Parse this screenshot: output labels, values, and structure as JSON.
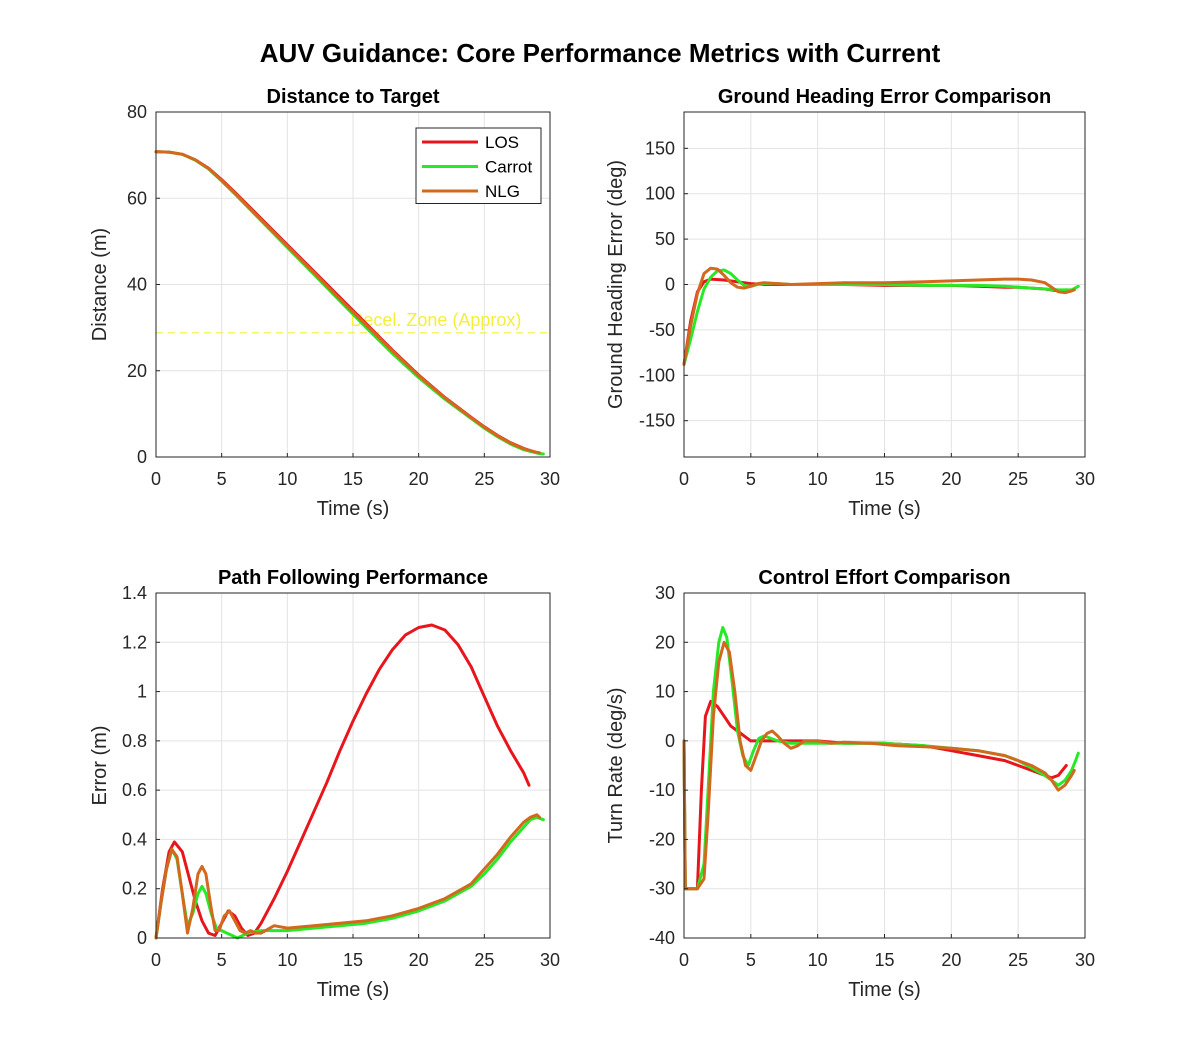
{
  "figure": {
    "title": "AUV Guidance: Core Performance Metrics with Current"
  },
  "colors": {
    "LOS": "#e8161c",
    "Carrot": "#27ea27",
    "NLG": "#d2691e",
    "threshold": "#f5ef3a",
    "grid": "#e3e3e3",
    "axis": "#262626"
  },
  "chart_data": [
    {
      "type": "line",
      "title": "Distance to Target",
      "xlabel": "Time (s)",
      "ylabel": "Distance (m)",
      "xlim": [
        0,
        30
      ],
      "ylim": [
        0,
        80
      ],
      "xticks": [
        0,
        5,
        10,
        15,
        20,
        25,
        30
      ],
      "yticks": [
        0,
        20,
        40,
        60,
        80
      ],
      "grid": true,
      "legend": {
        "placement": "top-right",
        "entries": [
          "LOS",
          "Carrot",
          "NLG"
        ]
      },
      "annotation": {
        "text": "Decel. Zone (Approx)",
        "y": 28.8,
        "x_text": 14.8
      },
      "series": [
        {
          "name": "LOS",
          "x": [
            0,
            1,
            2,
            3,
            4,
            5,
            6,
            8,
            10,
            12,
            14,
            16,
            18,
            20,
            22,
            24,
            25,
            26,
            27,
            28,
            28.6
          ],
          "y": [
            70.8,
            70.7,
            70.2,
            68.9,
            67.0,
            64.3,
            61.4,
            55.3,
            49.2,
            43.1,
            37.0,
            30.9,
            24.8,
            19.0,
            13.8,
            9.2,
            7.0,
            5.0,
            3.3,
            2.0,
            1.4
          ]
        },
        {
          "name": "Carrot",
          "x": [
            0,
            1,
            2,
            3,
            4,
            5,
            6,
            8,
            10,
            12,
            14,
            16,
            18,
            20,
            22,
            24,
            25,
            26,
            27,
            28,
            29,
            29.5
          ],
          "y": [
            70.8,
            70.7,
            70.2,
            68.8,
            66.8,
            64.0,
            61.0,
            54.8,
            48.6,
            42.4,
            36.2,
            30.0,
            24.0,
            18.4,
            13.4,
            8.9,
            6.7,
            4.7,
            3.0,
            1.7,
            0.9,
            0.7
          ]
        },
        {
          "name": "NLG",
          "x": [
            0,
            1,
            2,
            3,
            4,
            5,
            6,
            8,
            10,
            12,
            14,
            16,
            18,
            20,
            22,
            24,
            25,
            26,
            27,
            28,
            29,
            29.2
          ],
          "y": [
            70.8,
            70.7,
            70.2,
            68.9,
            66.9,
            64.1,
            61.2,
            55.0,
            48.9,
            42.8,
            36.6,
            30.6,
            24.6,
            18.8,
            13.7,
            9.1,
            6.9,
            4.9,
            3.2,
            1.9,
            1.1,
            1.0
          ]
        }
      ]
    },
    {
      "type": "line",
      "title": "Ground Heading Error Comparison",
      "xlabel": "Time (s)",
      "ylabel": "Ground Heading Error (deg)",
      "xlim": [
        0,
        30
      ],
      "ylim": [
        -190,
        190
      ],
      "xticks": [
        0,
        5,
        10,
        15,
        20,
        25,
        30
      ],
      "yticks": [
        -150,
        -100,
        -50,
        0,
        50,
        100,
        150
      ],
      "grid": true,
      "series": [
        {
          "name": "LOS",
          "x": [
            0,
            0.5,
            1,
            1.5,
            2,
            3,
            4,
            5,
            6,
            8,
            10,
            12,
            15,
            18,
            20,
            22,
            24,
            25,
            26,
            27,
            28,
            28.6
          ],
          "y": [
            -88,
            -40,
            -8,
            3,
            6,
            5,
            3,
            1,
            0,
            0,
            0,
            0,
            -1,
            -1,
            -1,
            -2,
            -3,
            -3,
            -4,
            -5,
            -7,
            -6
          ]
        },
        {
          "name": "Carrot",
          "x": [
            0,
            0.5,
            1,
            1.5,
            2,
            2.5,
            3,
            3.5,
            4,
            4.5,
            5,
            5.5,
            6,
            7,
            8,
            10,
            12,
            15,
            18,
            20,
            22,
            24,
            25,
            26,
            27,
            28,
            29,
            29.5
          ],
          "y": [
            -88,
            -60,
            -30,
            -5,
            8,
            15,
            16,
            12,
            5,
            -1,
            -2,
            0,
            1,
            1,
            0,
            0,
            0,
            0,
            -1,
            -1,
            -1,
            -2,
            -3,
            -4,
            -5,
            -6,
            -6,
            -2
          ]
        },
        {
          "name": "NLG",
          "x": [
            0,
            0.5,
            1,
            1.5,
            2,
            2.5,
            3,
            3.5,
            4,
            4.5,
            5,
            5.5,
            6,
            7,
            8,
            10,
            12,
            15,
            18,
            20,
            22,
            24,
            25,
            26,
            27,
            27.5,
            28,
            28.5,
            29,
            29.2
          ],
          "y": [
            -88,
            -45,
            -10,
            12,
            18,
            17,
            10,
            2,
            -3,
            -4,
            -2,
            1,
            2,
            1,
            0,
            1,
            2,
            2,
            3,
            4,
            5,
            6,
            6,
            5,
            2,
            -3,
            -8,
            -9,
            -7,
            -6
          ]
        }
      ]
    },
    {
      "type": "line",
      "title": "Path Following Performance",
      "xlabel": "Time (s)",
      "ylabel": "Error (m)",
      "xlim": [
        0,
        30
      ],
      "ylim": [
        0,
        1.4
      ],
      "xticks": [
        0,
        5,
        10,
        15,
        20,
        25,
        30
      ],
      "yticks": [
        0,
        0.2,
        0.4,
        0.6,
        0.8,
        1,
        1.2,
        1.4
      ],
      "grid": true,
      "series": [
        {
          "name": "LOS",
          "x": [
            0,
            0.5,
            1,
            1.4,
            2,
            2.5,
            3,
            3.5,
            4,
            4.5,
            5,
            5.5,
            6,
            6.5,
            7,
            7.5,
            8,
            9,
            10,
            11,
            12,
            13,
            14,
            15,
            16,
            17,
            18,
            19,
            20,
            21,
            22,
            23,
            24,
            25,
            26,
            27,
            28,
            28.4
          ],
          "y": [
            0,
            0.2,
            0.35,
            0.39,
            0.35,
            0.25,
            0.15,
            0.07,
            0.02,
            0.01,
            0.06,
            0.11,
            0.09,
            0.04,
            0.01,
            0.02,
            0.06,
            0.16,
            0.27,
            0.39,
            0.51,
            0.63,
            0.76,
            0.88,
            0.99,
            1.09,
            1.17,
            1.23,
            1.26,
            1.27,
            1.25,
            1.19,
            1.1,
            0.98,
            0.86,
            0.76,
            0.67,
            0.62
          ]
        },
        {
          "name": "Carrot",
          "x": [
            0,
            0.4,
            0.8,
            1.2,
            1.6,
            2,
            2.4,
            2.8,
            3.2,
            3.5,
            3.8,
            4.2,
            4.6,
            5,
            5.4,
            5.8,
            6.2,
            6.6,
            7,
            8,
            9,
            10,
            12,
            14,
            16,
            18,
            20,
            22,
            24,
            25,
            26,
            27,
            28,
            28.5,
            29,
            29.5
          ],
          "y": [
            0,
            0.15,
            0.28,
            0.36,
            0.32,
            0.18,
            0.05,
            0.1,
            0.18,
            0.21,
            0.18,
            0.1,
            0.04,
            0.03,
            0.02,
            0.01,
            0.0,
            0.01,
            0.02,
            0.03,
            0.03,
            0.03,
            0.04,
            0.05,
            0.06,
            0.08,
            0.11,
            0.15,
            0.21,
            0.26,
            0.32,
            0.39,
            0.45,
            0.48,
            0.49,
            0.48
          ]
        },
        {
          "name": "NLG",
          "x": [
            0,
            0.4,
            0.8,
            1.2,
            1.6,
            2,
            2.4,
            2.8,
            3.2,
            3.5,
            3.8,
            4.2,
            4.5,
            4.8,
            5.2,
            5.6,
            6,
            6.4,
            6.8,
            7.2,
            7.6,
            8,
            9,
            10,
            12,
            14,
            16,
            18,
            20,
            22,
            24,
            25,
            26,
            27,
            28,
            28.5,
            29,
            29.2
          ],
          "y": [
            0,
            0.15,
            0.28,
            0.36,
            0.33,
            0.18,
            0.02,
            0.12,
            0.26,
            0.29,
            0.26,
            0.12,
            0.03,
            0.03,
            0.09,
            0.11,
            0.07,
            0.03,
            0.02,
            0.03,
            0.02,
            0.02,
            0.05,
            0.04,
            0.05,
            0.06,
            0.07,
            0.09,
            0.12,
            0.16,
            0.22,
            0.28,
            0.34,
            0.41,
            0.47,
            0.49,
            0.5,
            0.49
          ]
        }
      ]
    },
    {
      "type": "line",
      "title": "Control Effort Comparison",
      "xlabel": "Time (s)",
      "ylabel": "Turn Rate (deg/s)",
      "xlim": [
        0,
        30
      ],
      "ylim": [
        -40,
        30
      ],
      "xticks": [
        0,
        5,
        10,
        15,
        20,
        25,
        30
      ],
      "yticks": [
        -40,
        -30,
        -20,
        -10,
        0,
        10,
        20,
        30
      ],
      "grid": true,
      "series": [
        {
          "name": "LOS",
          "x": [
            0,
            0.1,
            0.3,
            0.6,
            1,
            1.3,
            1.6,
            2,
            2.5,
            3,
            3.5,
            4,
            4.5,
            5,
            5.5,
            6,
            7,
            8,
            10,
            12,
            15,
            18,
            20,
            22,
            24,
            25,
            26,
            27,
            27.5,
            28,
            28.3,
            28.6
          ],
          "y": [
            0,
            -30,
            -30,
            -30,
            -30,
            -10,
            5,
            8,
            7,
            5,
            3,
            2,
            1,
            0,
            0,
            0,
            0,
            0,
            0,
            -0.5,
            -0.5,
            -1,
            -2,
            -3,
            -4,
            -5,
            -6,
            -7,
            -7.5,
            -7,
            -6,
            -5
          ]
        },
        {
          "name": "Carrot",
          "x": [
            0,
            0.1,
            0.5,
            1,
            1.5,
            1.8,
            2.2,
            2.6,
            2.9,
            3.2,
            3.6,
            4,
            4.4,
            4.8,
            5.2,
            5.6,
            6,
            6.5,
            7,
            8,
            10,
            12,
            15,
            18,
            20,
            22,
            24,
            25,
            26,
            27,
            27.5,
            28,
            28.5,
            29,
            29.3,
            29.5
          ],
          "y": [
            0,
            -30,
            -30,
            -30,
            -25,
            -10,
            10,
            20,
            23,
            21,
            12,
            2,
            -3,
            -5,
            -2,
            0.5,
            1,
            0.5,
            0,
            -0.5,
            -0.5,
            -0.5,
            -0.5,
            -1,
            -1.5,
            -2,
            -3,
            -4,
            -5.5,
            -7,
            -8,
            -9,
            -8,
            -6,
            -4,
            -2.5
          ]
        },
        {
          "name": "NLG",
          "x": [
            0,
            0.1,
            0.5,
            1,
            1.5,
            1.8,
            2.2,
            2.6,
            3,
            3.4,
            3.8,
            4.2,
            4.6,
            5,
            5.4,
            5.8,
            6.2,
            6.6,
            7,
            7.5,
            8,
            8.5,
            9,
            10,
            11,
            12,
            14,
            16,
            18,
            20,
            22,
            24,
            25,
            26,
            27,
            27.5,
            28,
            28.5,
            29,
            29.2
          ],
          "y": [
            0,
            -30,
            -30,
            -30,
            -28,
            -15,
            5,
            16,
            20,
            18,
            10,
            0,
            -5,
            -6,
            -3,
            0,
            1.5,
            2,
            1,
            -0.5,
            -1.5,
            -1,
            0,
            0,
            -0.5,
            -0.3,
            -0.5,
            -1,
            -1.2,
            -1.5,
            -2,
            -3,
            -4,
            -5,
            -6.5,
            -8,
            -10,
            -9,
            -7,
            -6
          ]
        }
      ]
    }
  ]
}
